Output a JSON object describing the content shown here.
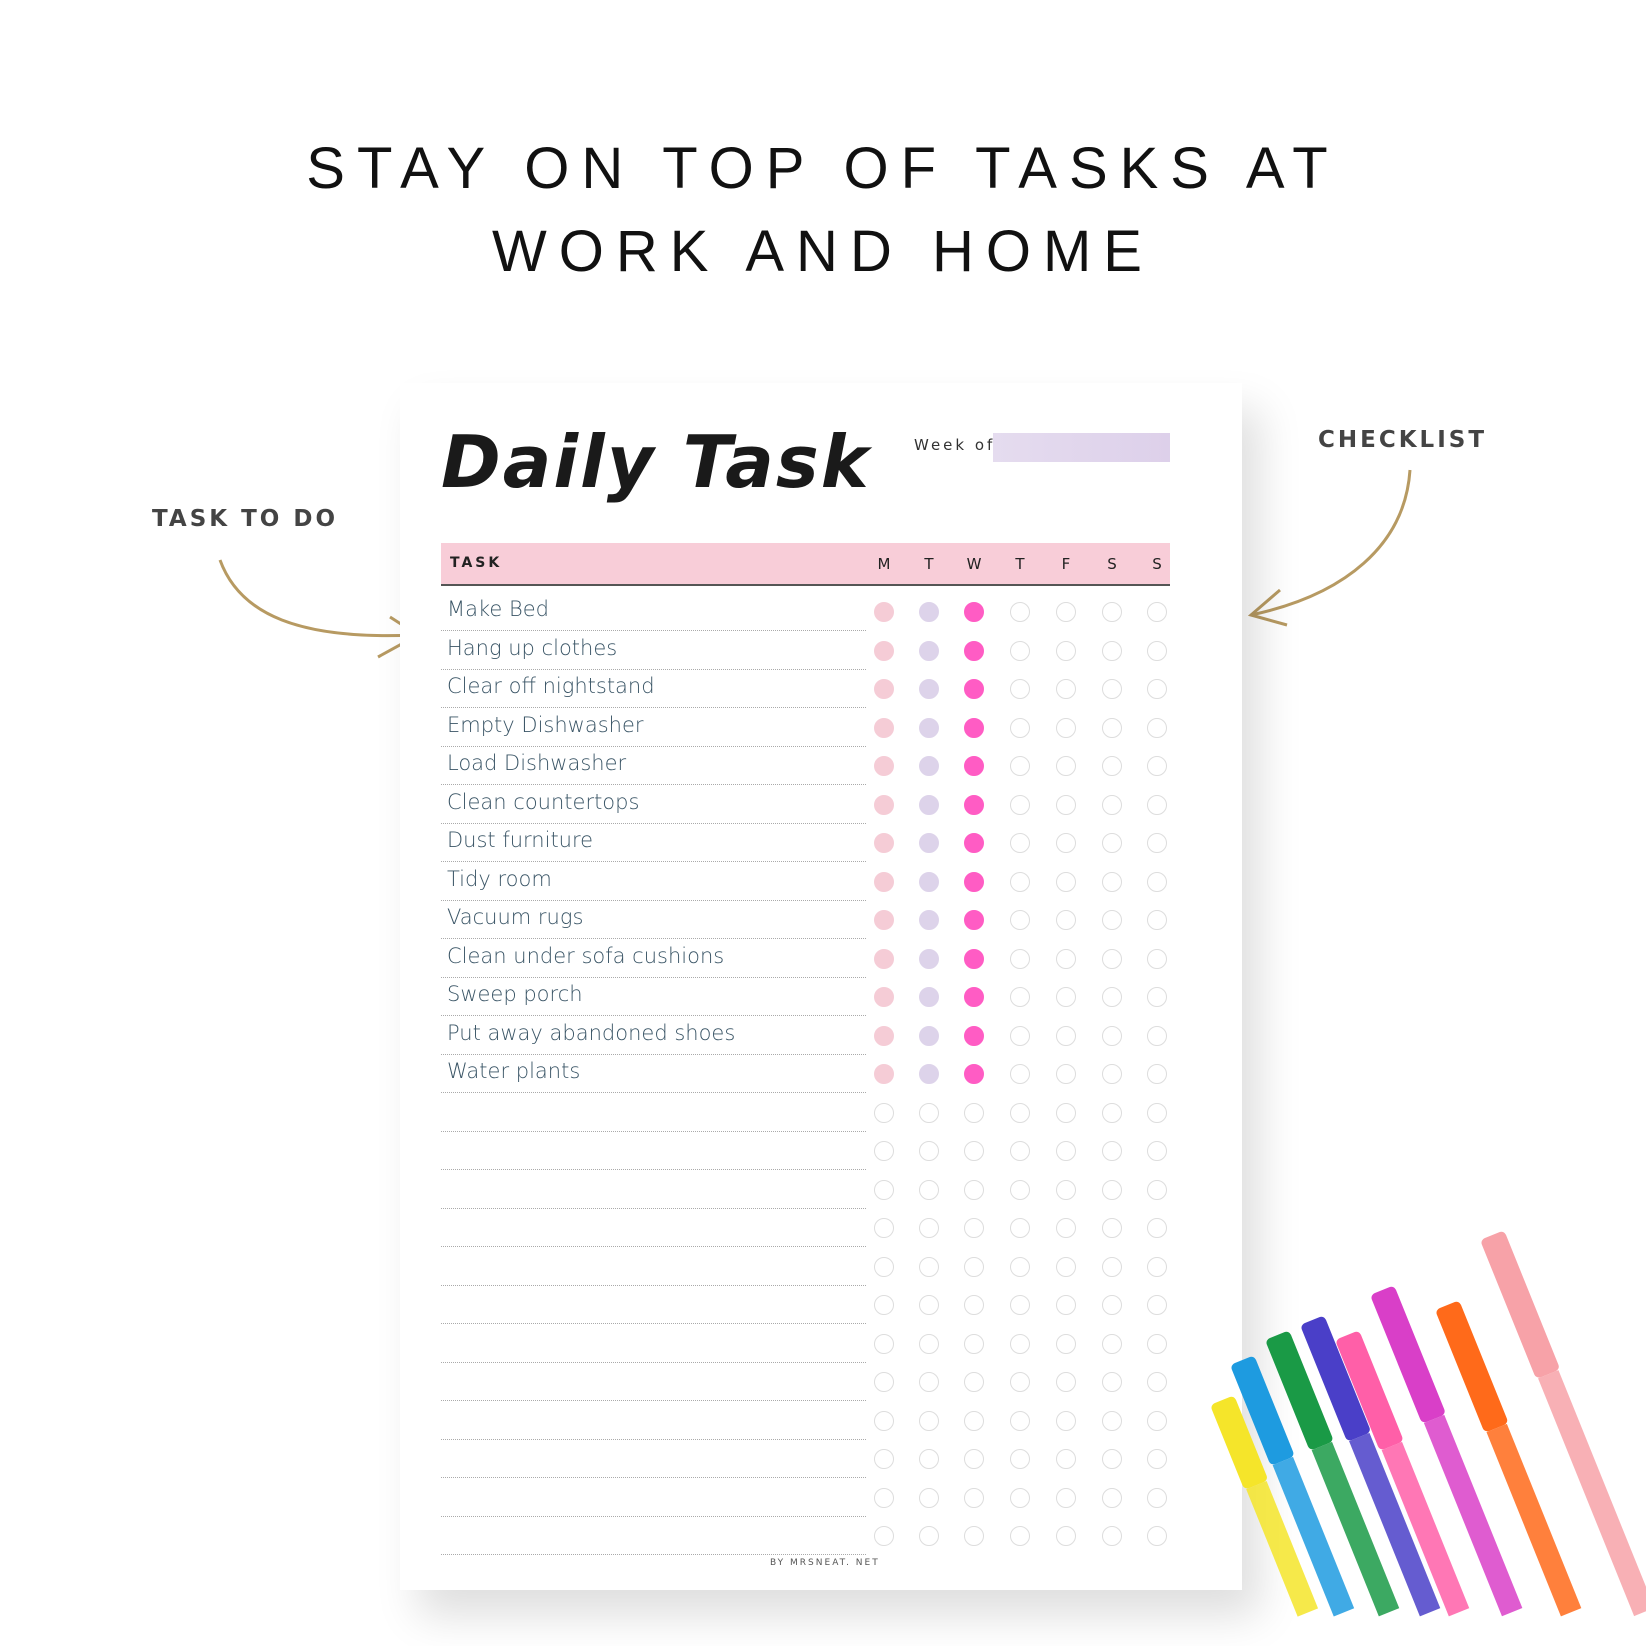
{
  "headline": {
    "line1": "STAY ON TOP OF TASKS AT",
    "line2": "WORK AND HOME"
  },
  "callouts": {
    "left": "TASK TO DO",
    "right": "CHECKLIST"
  },
  "planner": {
    "title": "Daily Task",
    "week_label": "Week of:",
    "week_value": "",
    "table_header": {
      "task": "TASK",
      "days": [
        "M",
        "T",
        "W",
        "T",
        "F",
        "S",
        "S"
      ]
    },
    "tasks": [
      {
        "label": "Make Bed",
        "checked": [
          true,
          true,
          true,
          false,
          false,
          false,
          false
        ]
      },
      {
        "label": "Hang up clothes",
        "checked": [
          true,
          true,
          true,
          false,
          false,
          false,
          false
        ]
      },
      {
        "label": "Clear off nightstand",
        "checked": [
          true,
          true,
          true,
          false,
          false,
          false,
          false
        ]
      },
      {
        "label": "Empty Dishwasher",
        "checked": [
          true,
          true,
          true,
          false,
          false,
          false,
          false
        ]
      },
      {
        "label": "Load Dishwasher",
        "checked": [
          true,
          true,
          true,
          false,
          false,
          false,
          false
        ]
      },
      {
        "label": "Clean countertops",
        "checked": [
          true,
          true,
          true,
          false,
          false,
          false,
          false
        ]
      },
      {
        "label": "Dust furniture",
        "checked": [
          true,
          true,
          true,
          false,
          false,
          false,
          false
        ]
      },
      {
        "label": "Tidy room",
        "checked": [
          true,
          true,
          true,
          false,
          false,
          false,
          false
        ]
      },
      {
        "label": "Vacuum rugs",
        "checked": [
          true,
          true,
          true,
          false,
          false,
          false,
          false
        ]
      },
      {
        "label": "Clean under sofa cushions",
        "checked": [
          true,
          true,
          true,
          false,
          false,
          false,
          false
        ]
      },
      {
        "label": "Sweep porch",
        "checked": [
          true,
          true,
          true,
          false,
          false,
          false,
          false
        ]
      },
      {
        "label": "Put away abandoned shoes",
        "checked": [
          true,
          true,
          true,
          false,
          false,
          false,
          false
        ]
      },
      {
        "label": "Water plants",
        "checked": [
          true,
          true,
          true,
          false,
          false,
          false,
          false
        ]
      },
      {
        "label": "",
        "checked": [
          false,
          false,
          false,
          false,
          false,
          false,
          false
        ]
      },
      {
        "label": "",
        "checked": [
          false,
          false,
          false,
          false,
          false,
          false,
          false
        ]
      },
      {
        "label": "",
        "checked": [
          false,
          false,
          false,
          false,
          false,
          false,
          false
        ]
      },
      {
        "label": "",
        "checked": [
          false,
          false,
          false,
          false,
          false,
          false,
          false
        ]
      },
      {
        "label": "",
        "checked": [
          false,
          false,
          false,
          false,
          false,
          false,
          false
        ]
      },
      {
        "label": "",
        "checked": [
          false,
          false,
          false,
          false,
          false,
          false,
          false
        ]
      },
      {
        "label": "",
        "checked": [
          false,
          false,
          false,
          false,
          false,
          false,
          false
        ]
      },
      {
        "label": "",
        "checked": [
          false,
          false,
          false,
          false,
          false,
          false,
          false
        ]
      },
      {
        "label": "",
        "checked": [
          false,
          false,
          false,
          false,
          false,
          false,
          false
        ]
      },
      {
        "label": "",
        "checked": [
          false,
          false,
          false,
          false,
          false,
          false,
          false
        ]
      },
      {
        "label": "",
        "checked": [
          false,
          false,
          false,
          false,
          false,
          false,
          false
        ]
      },
      {
        "label": "",
        "checked": [
          false,
          false,
          false,
          false,
          false,
          false,
          false
        ]
      }
    ],
    "footer": "BY MRSNEAT. NET"
  },
  "colors": {
    "header_bg": "#f8cdd8",
    "week_box": "#e2d8ee",
    "day_colors": [
      "#f5ccd6",
      "#ddd3ea",
      "#ff5cc4"
    ],
    "empty_circle": "#dddddd",
    "task_text": "#3a5566",
    "arrow": "#b79a62",
    "markers": [
      "#f5e52a",
      "#1e9be0",
      "#1a9a46",
      "#4a3fc8",
      "#ff5fa8",
      "#d93fc8",
      "#ff6a1a",
      "#f7a2a8"
    ]
  }
}
